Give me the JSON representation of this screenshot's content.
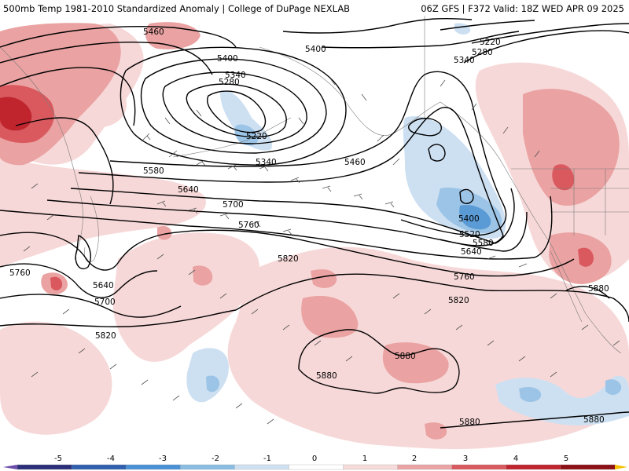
{
  "header": {
    "left_title": "500mb Temp 1981-2010 Standardized Anomaly | College of DuPage NEXLAB",
    "right_title": "06Z GFS | F372 Valid: 18Z WED APR 09 2025"
  },
  "colors": {
    "light_red": "#f7d8d8",
    "mid_red": "#eaa2a2",
    "strong_red": "#d9595e",
    "deep_red": "#c0252e",
    "light_blue": "#cde0f2",
    "mid_blue": "#9cc4e6",
    "strong_blue": "#5b9bd5",
    "contour_color": "#000000"
  },
  "contour_labels": [
    {
      "id": "c5460a",
      "text": "5460"
    },
    {
      "id": "c5400a",
      "text": "5400"
    },
    {
      "id": "c5340a",
      "text": "5340"
    },
    {
      "id": "c5280a",
      "text": "5280"
    },
    {
      "id": "c5220a",
      "text": "5220"
    },
    {
      "id": "c5340b",
      "text": "5340"
    },
    {
      "id": "c5400b",
      "text": "5400"
    },
    {
      "id": "c5220b",
      "text": "5220"
    },
    {
      "id": "c5280b",
      "text": "5280"
    },
    {
      "id": "c5340c",
      "text": "5340"
    },
    {
      "id": "c5460b",
      "text": "5460"
    },
    {
      "id": "c5580a",
      "text": "5580"
    },
    {
      "id": "c5640a",
      "text": "5640"
    },
    {
      "id": "c5700a",
      "text": "5700"
    },
    {
      "id": "c5760a",
      "text": "5760"
    },
    {
      "id": "c5400c",
      "text": "5400"
    },
    {
      "id": "c5520a",
      "text": "5520"
    },
    {
      "id": "c5580b",
      "text": "5580"
    },
    {
      "id": "c5640b",
      "text": "5640"
    },
    {
      "id": "c5820a",
      "text": "5820"
    },
    {
      "id": "c5760b",
      "text": "5760"
    },
    {
      "id": "c5820b",
      "text": "5820"
    },
    {
      "id": "c5760c",
      "text": "5760"
    },
    {
      "id": "c5640c",
      "text": "5640"
    },
    {
      "id": "c5700b",
      "text": "5700"
    },
    {
      "id": "c5820c",
      "text": "5820"
    },
    {
      "id": "c5880a",
      "text": "5880"
    },
    {
      "id": "c5880b",
      "text": "5880"
    },
    {
      "id": "c5880c",
      "text": "5880"
    },
    {
      "id": "c5880d",
      "text": "5880"
    },
    {
      "id": "c5880e",
      "text": "5880"
    }
  ],
  "colorbar": {
    "ticks": [
      "-5",
      "-4",
      "-3",
      "-2",
      "-1",
      "0",
      "1",
      "2",
      "3",
      "4",
      "5"
    ],
    "colors": [
      "#2b2f7a",
      "#2f5fae",
      "#4a90d6",
      "#8bbde3",
      "#cfe1f1",
      "#ffffff",
      "#f7dada",
      "#eba3a3",
      "#d9595e",
      "#c0252e",
      "#8c1016"
    ],
    "end_low_color": "#6a4ca8",
    "end_high_color": "#f5c000"
  }
}
